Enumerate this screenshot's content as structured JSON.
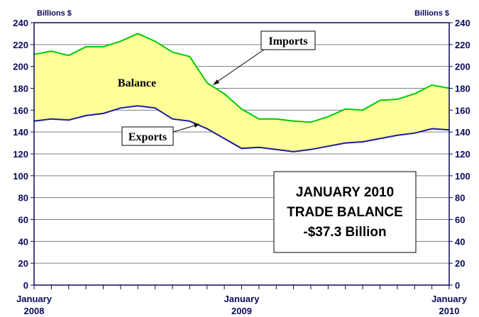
{
  "chart_data": {
    "type": "area",
    "title": "",
    "y_unit_left": "Billions $",
    "y_unit_right": "Billions $",
    "ylim": [
      0,
      240
    ],
    "y_ticks": [
      0,
      20,
      40,
      60,
      80,
      100,
      120,
      140,
      160,
      180,
      200,
      220,
      240
    ],
    "x_ticks": [
      {
        "label": "January",
        "year": "2008",
        "month_index": 0
      },
      {
        "label": "January",
        "year": "2009",
        "month_index": 12
      },
      {
        "label": "January",
        "year": "2010",
        "month_index": 24
      }
    ],
    "grid": true,
    "series": [
      {
        "name": "Imports",
        "color": "#00cc00",
        "values": [
          211,
          214,
          210,
          218,
          218,
          223,
          230,
          223,
          213,
          209,
          185,
          175,
          161,
          152,
          152,
          150,
          149,
          154,
          161,
          160,
          169,
          170,
          175,
          183,
          180
        ]
      },
      {
        "name": "Exports",
        "color": "#1a1aa0",
        "values": [
          150,
          152,
          151,
          155,
          157,
          162,
          164,
          162,
          152,
          150,
          143,
          134,
          125,
          126,
          124,
          122,
          124,
          127,
          130,
          131,
          134,
          137,
          139,
          143,
          142
        ]
      }
    ],
    "balance": {
      "label": "Balance",
      "fill": "#ffff99"
    },
    "callout": {
      "line1": "JANUARY 2010",
      "line2": "TRADE BALANCE",
      "line3": "-$37.3 Billion"
    }
  }
}
